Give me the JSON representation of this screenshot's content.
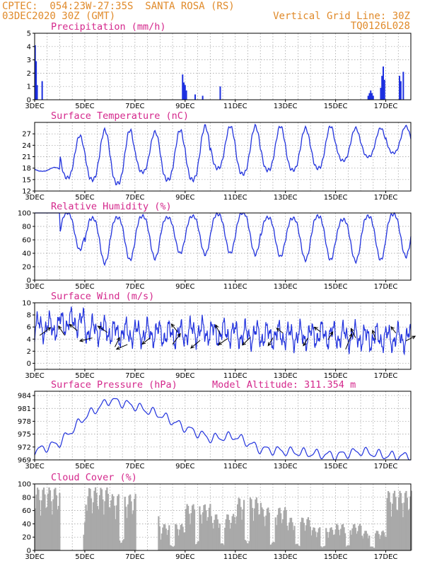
{
  "header": {
    "line1_left": "CPTEC:  054:23W-27:35S  SANTA ROSA (RS)",
    "line2_left": "03DEC2020 30Z (GMT)",
    "line1_right": "Vertical Grid Line: 30Z",
    "line2_right": "TQ0126L028"
  },
  "colors": {
    "line": "#2233dd",
    "bar": "#1c2fe0",
    "cloud": "#a9a9a9",
    "title": "#d4288c",
    "header": "#e08a2a",
    "grid": "#999999"
  },
  "chart_data": [
    {
      "panel": "precipitation",
      "type": "bar",
      "title": "Precipitation (mm/h)",
      "ylim": [
        0,
        5
      ],
      "yticks": [
        "0",
        "1",
        "2",
        "3",
        "4",
        "5"
      ],
      "x_days": [
        3,
        18
      ],
      "xticks": [
        "3DEC",
        "5DEC",
        "7DEC",
        "9DEC",
        "11DEC",
        "13DEC",
        "15DEC",
        "17DEC"
      ],
      "bars": [
        [
          3.02,
          4.1
        ],
        [
          3.06,
          2.9
        ],
        [
          3.1,
          1.1
        ],
        [
          3.3,
          1.4
        ],
        [
          8.9,
          1.9
        ],
        [
          8.95,
          1.3
        ],
        [
          9.0,
          1.1
        ],
        [
          9.05,
          0.7
        ],
        [
          9.4,
          0.4
        ],
        [
          9.7,
          0.3
        ],
        [
          10.4,
          1.0
        ],
        [
          16.3,
          0.3
        ],
        [
          16.35,
          0.5
        ],
        [
          16.4,
          0.7
        ],
        [
          16.45,
          0.5
        ],
        [
          16.5,
          0.3
        ],
        [
          16.8,
          0.9
        ],
        [
          16.85,
          1.8
        ],
        [
          16.9,
          2.5
        ],
        [
          16.95,
          1.5
        ],
        [
          17.55,
          1.8
        ],
        [
          17.6,
          1.4
        ],
        [
          17.7,
          2.1
        ]
      ]
    },
    {
      "panel": "temperature",
      "type": "line",
      "title": "Surface Temperature (nC)",
      "ylim": [
        12,
        30
      ],
      "yticks": [
        "12",
        "15",
        "18",
        "21",
        "24",
        "27"
      ],
      "x_days": [
        3,
        18
      ],
      "xticks": [
        "3DEC",
        "5DEC",
        "7DEC",
        "9DEC",
        "11DEC",
        "13DEC",
        "15DEC",
        "17DEC"
      ],
      "daily_min": [
        17.2,
        15.5,
        15.0,
        14.0,
        17.0,
        15.0,
        15.0,
        18.0,
        16.5,
        17.5,
        17.5,
        18.0,
        20.0,
        21.0,
        22.0,
        23.0
      ],
      "daily_max": [
        18.2,
        26.5,
        28.0,
        28.0,
        27.5,
        28.0,
        29.0,
        29.0,
        29.0,
        29.0,
        28.5,
        29.0,
        28.5,
        28.5,
        29.0,
        29.0
      ]
    },
    {
      "panel": "humidity",
      "type": "line",
      "title": "Relative Humidity (%)",
      "ylim": [
        0,
        100
      ],
      "yticks": [
        "0",
        "20",
        "40",
        "60",
        "80",
        "100"
      ],
      "x_days": [
        3,
        18
      ],
      "xticks": [
        "3DEC",
        "5DEC",
        "7DEC",
        "9DEC",
        "11DEC",
        "13DEC",
        "15DEC",
        "17DEC"
      ],
      "daily_min": [
        100,
        45,
        25,
        30,
        32,
        40,
        38,
        40,
        38,
        35,
        30,
        30,
        28,
        30,
        35,
        28
      ],
      "daily_max": [
        100,
        100,
        92,
        93,
        95,
        93,
        95,
        98,
        100,
        93,
        92,
        95,
        90,
        95,
        98,
        100
      ]
    },
    {
      "panel": "wind",
      "type": "line",
      "title": "Surface Wind (m/s)",
      "ylim": [
        -1,
        10
      ],
      "yticks": [
        "0",
        "2",
        "4",
        "6",
        "8",
        "10"
      ],
      "x_days": [
        3,
        18
      ],
      "xticks": [
        "3DEC",
        "5DEC",
        "7DEC",
        "9DEC",
        "11DEC",
        "13DEC",
        "15DEC",
        "17DEC"
      ],
      "speed_base": [
        6.0,
        6.8,
        5.5,
        5.0,
        5.0,
        4.8,
        5.2,
        5.0,
        4.7,
        4.6,
        4.5,
        4.7,
        4.5,
        4.2,
        4.2,
        4.5
      ],
      "arrows": [
        [
          3.2,
          4.6,
          0.7,
          0.5
        ],
        [
          4.2,
          4.6,
          -0.4,
          0.6
        ],
        [
          4.7,
          5.4,
          -0.5,
          0.4
        ],
        [
          5.3,
          4.2,
          -0.8,
          -0.2
        ],
        [
          5.9,
          5.1,
          -0.6,
          0.4
        ],
        [
          6.2,
          2.7,
          0.3,
          0.6
        ],
        [
          6.7,
          3.1,
          -0.7,
          -0.3
        ],
        [
          7.6,
          4.2,
          -0.5,
          -0.4
        ],
        [
          8.5,
          3.1,
          0.5,
          0.7
        ],
        [
          8.7,
          5.2,
          -0.4,
          0.5
        ],
        [
          9.6,
          3.8,
          -0.6,
          -0.5
        ],
        [
          10.4,
          4.8,
          -0.3,
          0.6
        ],
        [
          10.7,
          4.1,
          -0.6,
          -0.4
        ],
        [
          11.6,
          4.3,
          -0.5,
          -0.5
        ],
        [
          12.5,
          4.2,
          -0.3,
          -0.5
        ],
        [
          12.9,
          5.0,
          -0.4,
          0.3
        ],
        [
          13.9,
          4.2,
          -0.3,
          -0.5
        ],
        [
          14.4,
          5.2,
          -0.4,
          0.3
        ],
        [
          14.7,
          3.9,
          0.3,
          0.5
        ],
        [
          15.4,
          2.3,
          0.4,
          1.0
        ],
        [
          15.8,
          4.2,
          -0.3,
          0.6
        ],
        [
          16.6,
          3.9,
          -0.2,
          0.6
        ],
        [
          17.4,
          5.0,
          -0.3,
          0.4
        ],
        [
          17.8,
          3.7,
          0.6,
          0.3
        ]
      ]
    },
    {
      "panel": "pressure",
      "type": "line",
      "title": "Surface Pressure (hPa)",
      "annotation": "Model Altitude: 311.354 m",
      "ylim": [
        969,
        985
      ],
      "yticks": [
        "969",
        "972",
        "975",
        "978",
        "981",
        "984"
      ],
      "x_days": [
        3,
        18
      ],
      "xticks": [
        "3DEC",
        "5DEC",
        "7DEC",
        "9DEC",
        "11DEC",
        "13DEC",
        "15DEC",
        "17DEC"
      ],
      "daily_mean": [
        971.0,
        973.0,
        979.0,
        983.0,
        981.5,
        979.5,
        976.5,
        974.0,
        974.5,
        971.5,
        971.0,
        970.5,
        970.0,
        971.0,
        970.0,
        969.8
      ]
    },
    {
      "panel": "cloud",
      "type": "bar",
      "title": "Cloud Cover (%)",
      "ylim": [
        0,
        100
      ],
      "yticks": [
        "0",
        "20",
        "40",
        "60",
        "80",
        "100"
      ],
      "x_days": [
        3,
        18
      ],
      "xticks": [
        "3DEC",
        "5DEC",
        "7DEC",
        "9DEC",
        "11DEC",
        "13DEC",
        "15DEC",
        "17DEC"
      ],
      "daily_level": [
        95,
        0,
        95,
        85,
        0,
        40,
        70,
        55,
        80,
        65,
        50,
        35,
        40,
        30,
        90,
        100
      ]
    }
  ]
}
